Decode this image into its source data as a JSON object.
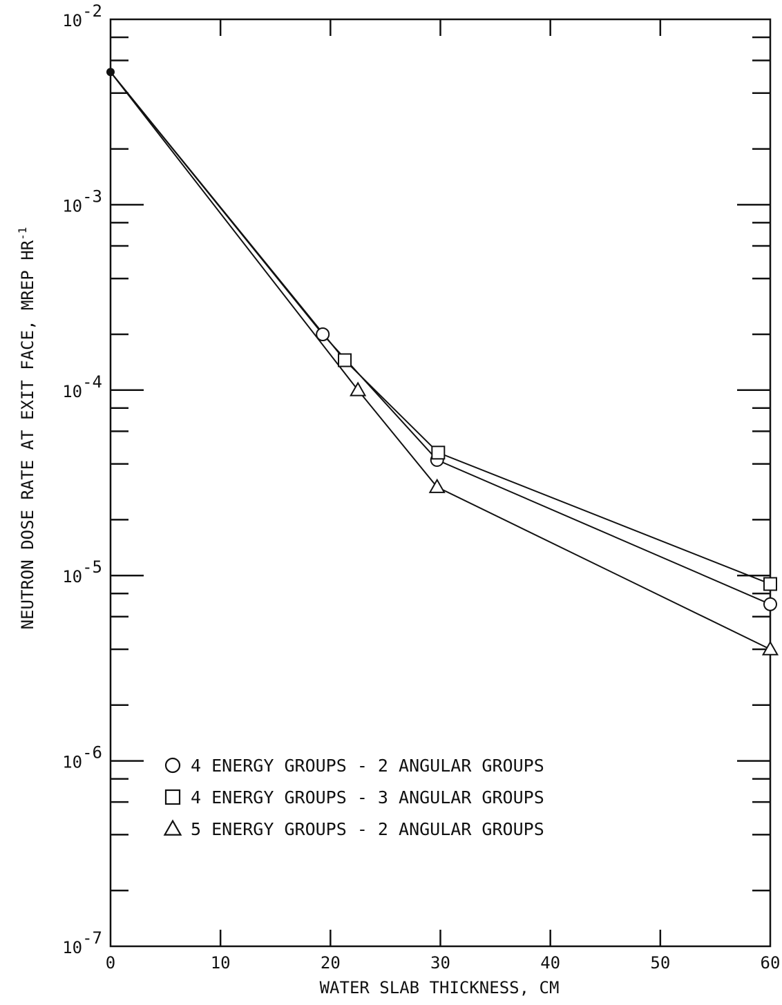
{
  "chart_data": {
    "type": "line",
    "title": "",
    "xlabel": "WATER SLAB THICKNESS, CM",
    "ylabel": "NEUTRON DOSE RATE AT EXIT FACE, MREP HR",
    "ylabel_exponent": "-1",
    "x_scale": "linear",
    "y_scale": "log",
    "xlim": [
      0,
      60
    ],
    "ylim": [
      1e-07,
      0.01
    ],
    "x_ticks": [
      0,
      10,
      20,
      30,
      40,
      50,
      60
    ],
    "x_tick_labels": [
      "0",
      "10",
      "20",
      "30",
      "40",
      "50",
      "60"
    ],
    "y_ticks": [
      {
        "value": 1e-07,
        "base": "10",
        "exponent": "-7"
      },
      {
        "value": 1e-06,
        "base": "10",
        "exponent": "-6"
      },
      {
        "value": 1e-05,
        "base": "10",
        "exponent": "-5"
      },
      {
        "value": 0.0001,
        "base": "10",
        "exponent": "-4"
      },
      {
        "value": 0.001,
        "base": "10",
        "exponent": "-3"
      },
      {
        "value": 0.01,
        "base": "10",
        "exponent": "-2"
      }
    ],
    "grid": false,
    "legend_position": "lower-left",
    "series": [
      {
        "name": "4 ENERGY GROUPS - 2 ANGULAR GROUPS",
        "marker": "circle",
        "x": [
          0,
          19.3,
          29.7,
          60
        ],
        "y": [
          0.0052,
          0.0002,
          4.2e-05,
          7e-06
        ]
      },
      {
        "name": "4 ENERGY GROUPS - 3 ANGULAR GROUPS",
        "marker": "square",
        "x": [
          0,
          21.3,
          29.8,
          60
        ],
        "y": [
          0.0052,
          0.000145,
          4.6e-05,
          9e-06
        ]
      },
      {
        "name": "5 ENERGY GROUPS - 2 ANGULAR GROUPS",
        "marker": "triangle",
        "x": [
          0,
          22.5,
          29.7,
          60
        ],
        "y": [
          0.0052,
          0.0001,
          3e-05,
          4e-06
        ]
      }
    ]
  }
}
